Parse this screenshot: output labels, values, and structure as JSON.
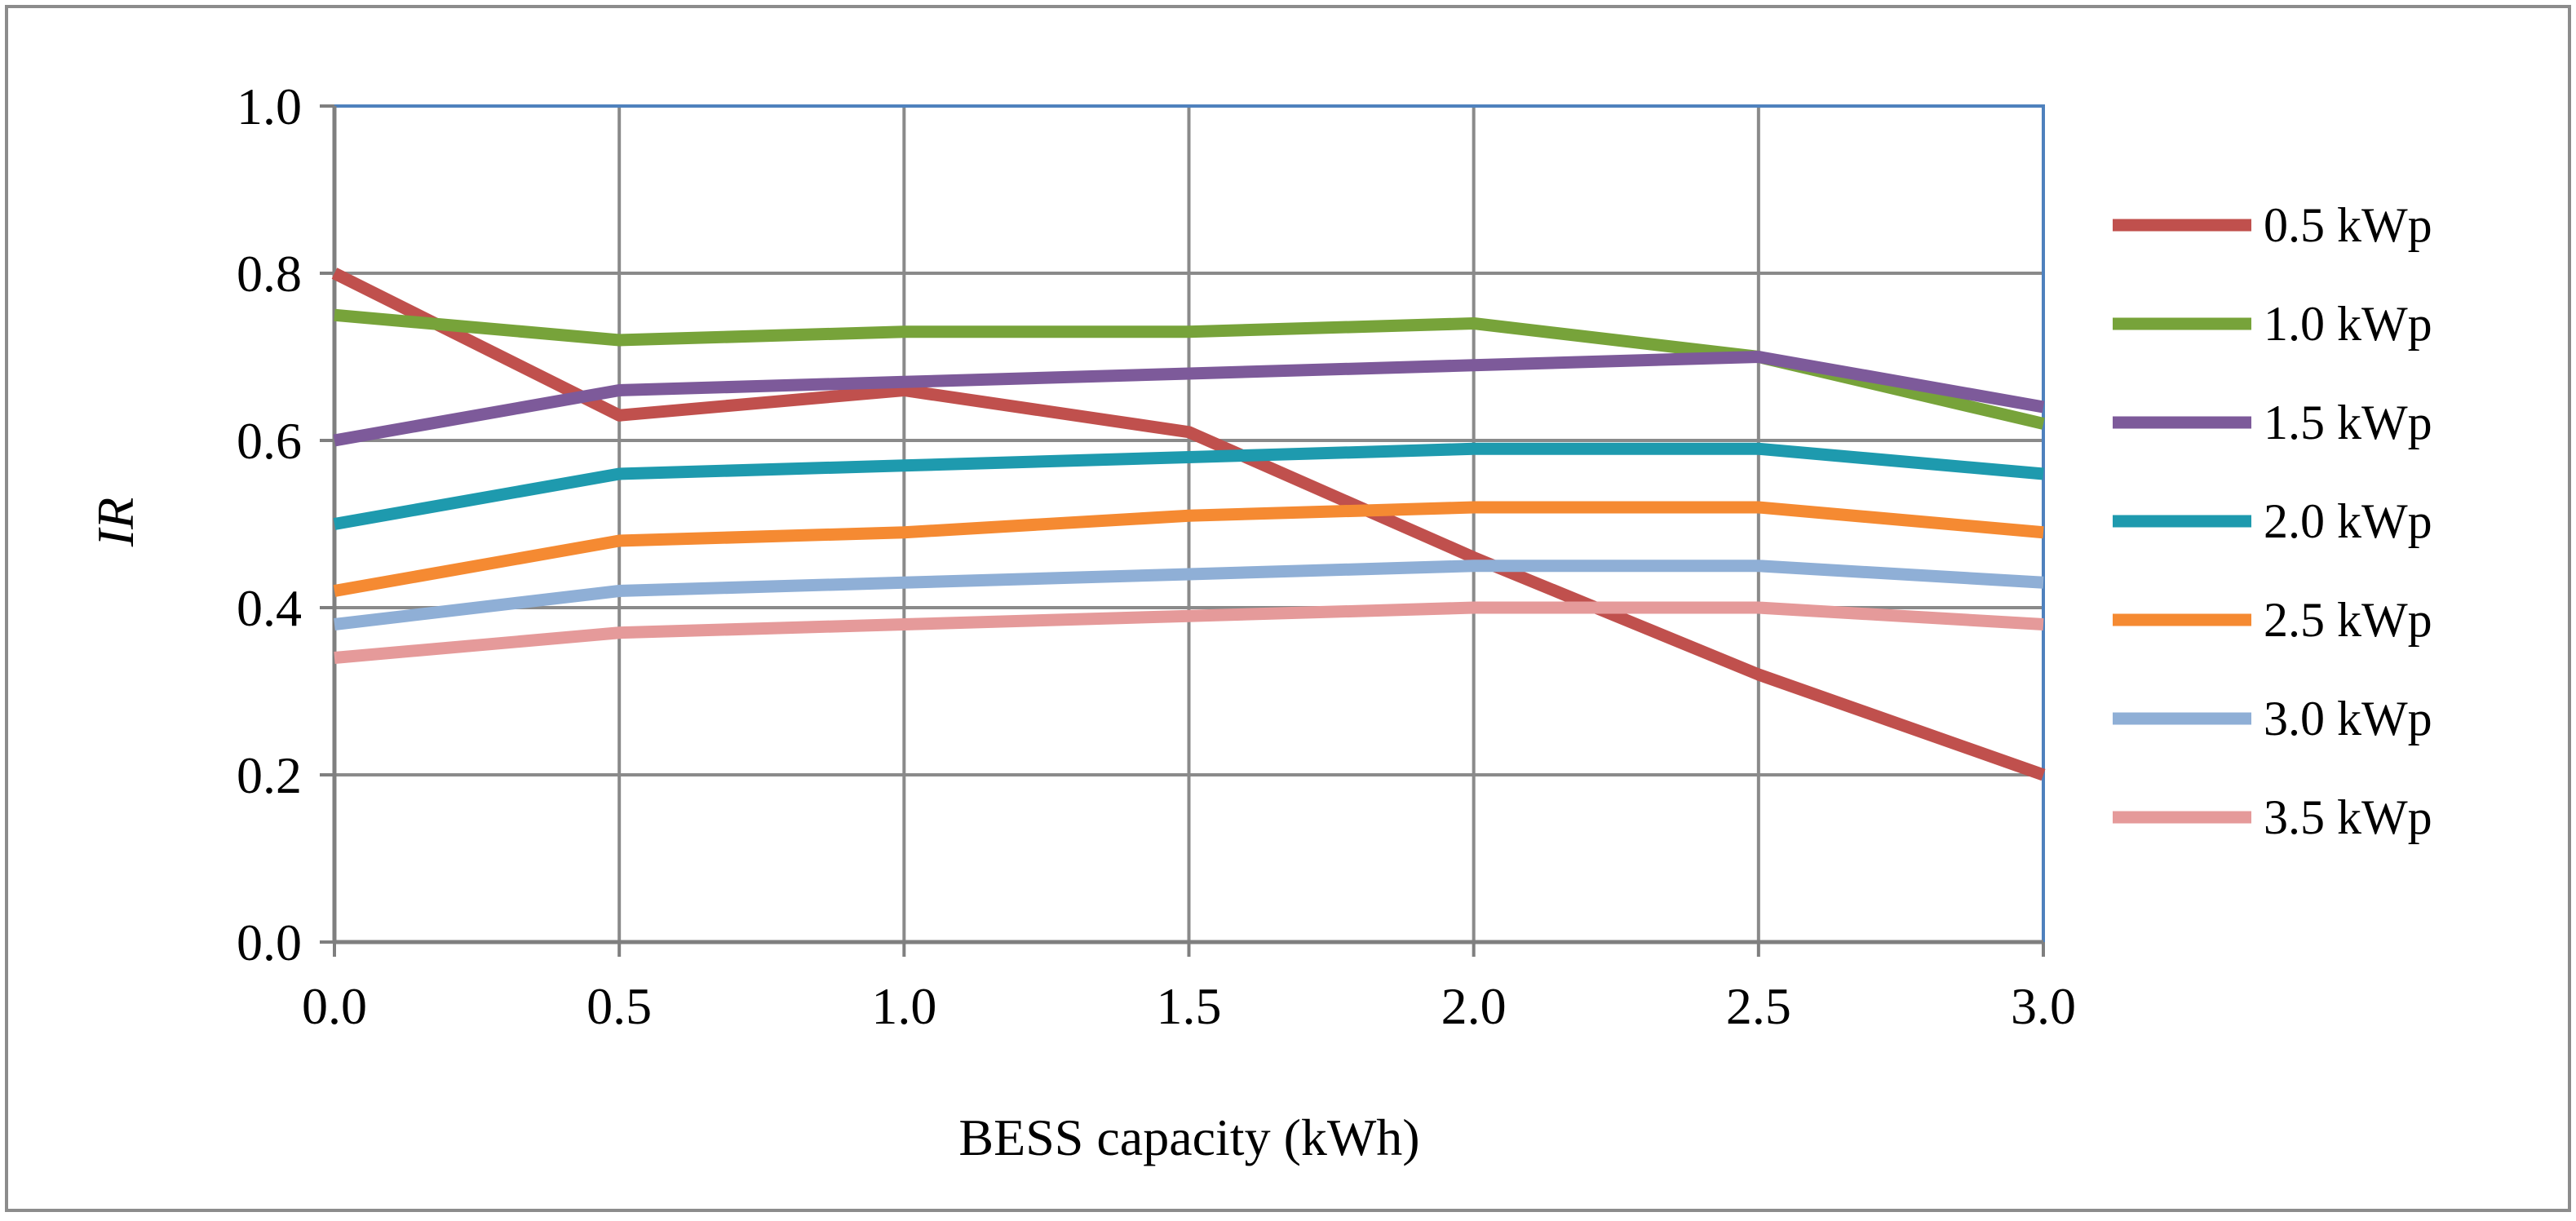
{
  "chart_data": {
    "type": "line",
    "title": "",
    "xlabel": "BESS capacity  (kWh)",
    "ylabel": "IR",
    "x": [
      0.0,
      0.5,
      1.0,
      1.5,
      2.0,
      2.5,
      3.0
    ],
    "x_tick_labels": [
      "0.0",
      "0.5",
      "1.0",
      "1.5",
      "2.0",
      "2.5",
      "3.0"
    ],
    "y_tick_values": [
      0.0,
      0.2,
      0.4,
      0.6,
      0.8,
      1.0
    ],
    "y_tick_labels": [
      "0.0",
      "0.2",
      "0.4",
      "0.6",
      "0.8",
      "1.0"
    ],
    "xlim": [
      0.0,
      3.0
    ],
    "ylim": [
      0.0,
      1.0
    ],
    "grid": true,
    "legend_position": "right",
    "series": [
      {
        "name": "0.5 kWp",
        "color": "#C0504D",
        "values": [
          0.8,
          0.63,
          0.66,
          0.61,
          0.46,
          0.32,
          0.2
        ]
      },
      {
        "name": "1.0 kWp",
        "color": "#77A33A",
        "values": [
          0.75,
          0.72,
          0.73,
          0.73,
          0.74,
          0.7,
          0.62
        ]
      },
      {
        "name": "1.5 kWp",
        "color": "#7D5A9A",
        "values": [
          0.6,
          0.66,
          0.67,
          0.68,
          0.69,
          0.7,
          0.64
        ]
      },
      {
        "name": "2.0 kWp",
        "color": "#1E9AAE",
        "values": [
          0.5,
          0.56,
          0.57,
          0.58,
          0.59,
          0.59,
          0.56
        ]
      },
      {
        "name": "2.5 kWp",
        "color": "#F58A32",
        "values": [
          0.42,
          0.48,
          0.49,
          0.51,
          0.52,
          0.52,
          0.49
        ]
      },
      {
        "name": "3.0 kWp",
        "color": "#8FAFD6",
        "values": [
          0.38,
          0.42,
          0.43,
          0.44,
          0.45,
          0.45,
          0.43
        ]
      },
      {
        "name": "3.5 kWp",
        "color": "#E59A9A",
        "values": [
          0.34,
          0.37,
          0.38,
          0.39,
          0.4,
          0.4,
          0.38
        ]
      }
    ]
  }
}
